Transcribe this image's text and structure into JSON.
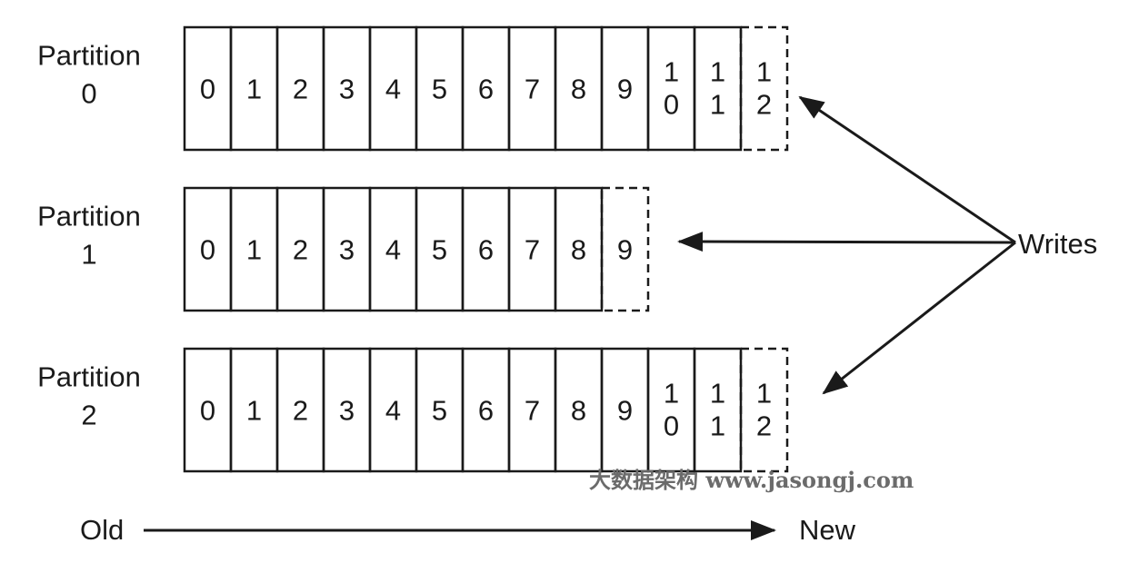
{
  "partitions": [
    {
      "label_line1": "Partition",
      "label_line2": "0",
      "offsets": [
        "0",
        "1",
        "2",
        "3",
        "4",
        "5",
        "6",
        "7",
        "8",
        "9",
        "10",
        "11"
      ],
      "next_offset": "12"
    },
    {
      "label_line1": "Partition",
      "label_line2": "1",
      "offsets": [
        "0",
        "1",
        "2",
        "3",
        "4",
        "5",
        "6",
        "7",
        "8"
      ],
      "next_offset": "9"
    },
    {
      "label_line1": "Partition",
      "label_line2": "2",
      "offsets": [
        "0",
        "1",
        "2",
        "3",
        "4",
        "5",
        "6",
        "7",
        "8",
        "9",
        "10",
        "11"
      ],
      "next_offset": "12"
    }
  ],
  "writes_label": "Writes",
  "timeline": {
    "old_label": "Old",
    "new_label": "New"
  },
  "watermark": "大数据架构 www.jasongj.com",
  "colors": {
    "stroke": "#1a1a1a",
    "text": "#1a1a1a",
    "watermark": "#6b6b6b"
  }
}
